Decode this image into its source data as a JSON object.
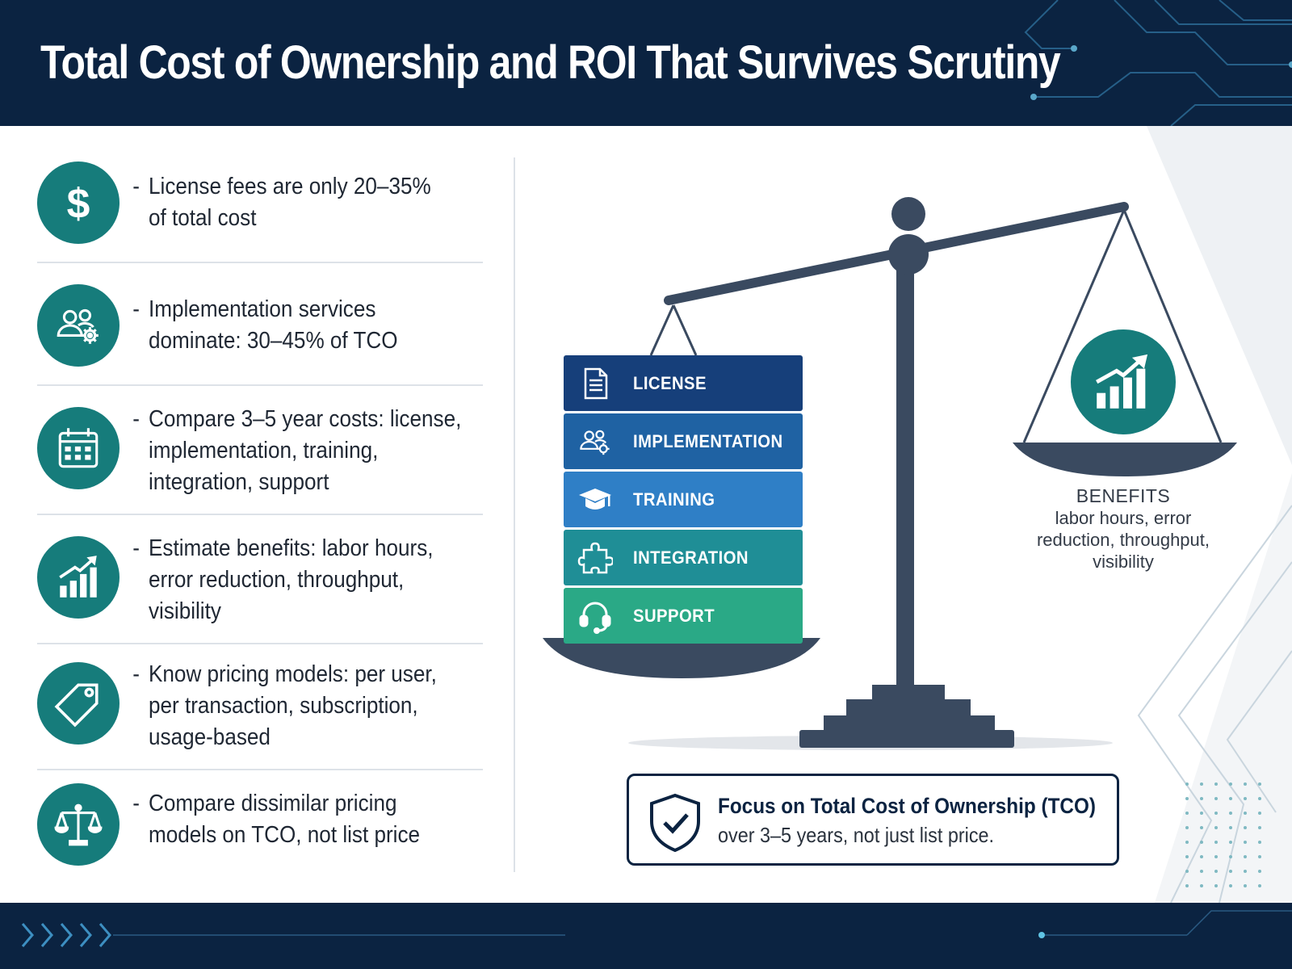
{
  "header": {
    "title": "Total Cost of Ownership and ROI That Survives Scrutiny"
  },
  "colors": {
    "navy": "#0b2341",
    "teal": "#167c7b",
    "block_license": "#163f7a",
    "block_implementation": "#1f62a3",
    "block_training": "#2f7fc6",
    "block_integration": "#1f8e96",
    "block_support": "#2aa986",
    "scale": "#3a4a60"
  },
  "left_list": {
    "items": [
      {
        "icon": "dollar-icon",
        "lines": [
          "License fees are only 20–35%",
          "of total cost"
        ]
      },
      {
        "icon": "team-gear-icon",
        "lines": [
          "Implementation services",
          "dominate: 30–45% of TCO"
        ]
      },
      {
        "icon": "calendar-icon",
        "lines": [
          "Compare 3–5 year costs: license,",
          "implementation, training,",
          "integration, support"
        ]
      },
      {
        "icon": "growth-chart-icon",
        "lines": [
          "Estimate benefits: labor hours,",
          "error reduction, throughput,",
          "visibility"
        ]
      },
      {
        "icon": "price-tag-icon",
        "lines": [
          "Know pricing models: per user,",
          "per transaction, subscription,",
          "usage-based"
        ]
      },
      {
        "icon": "balance-scale-icon",
        "lines": [
          "Compare dissimilar pricing",
          "models on TCO, not list price"
        ]
      }
    ],
    "bullet": "-"
  },
  "cost_blocks": [
    {
      "label": "LICENSE",
      "icon": "document-icon"
    },
    {
      "label": "IMPLEMENTATION",
      "icon": "team-gear-icon"
    },
    {
      "label": "TRAINING",
      "icon": "graduation-cap-icon"
    },
    {
      "label": "INTEGRATION",
      "icon": "puzzle-icon"
    },
    {
      "label": "SUPPORT",
      "icon": "headset-icon"
    }
  ],
  "benefits": {
    "title": "BENEFITS",
    "lines": [
      "labor hours, error",
      "reduction, throughput,",
      "visibility"
    ],
    "icon": "growth-chart-icon"
  },
  "callout": {
    "title": "Focus on Total Cost of Ownership (TCO)",
    "body": "over 3–5 years, not just list price.",
    "icon": "shield-check-icon"
  }
}
